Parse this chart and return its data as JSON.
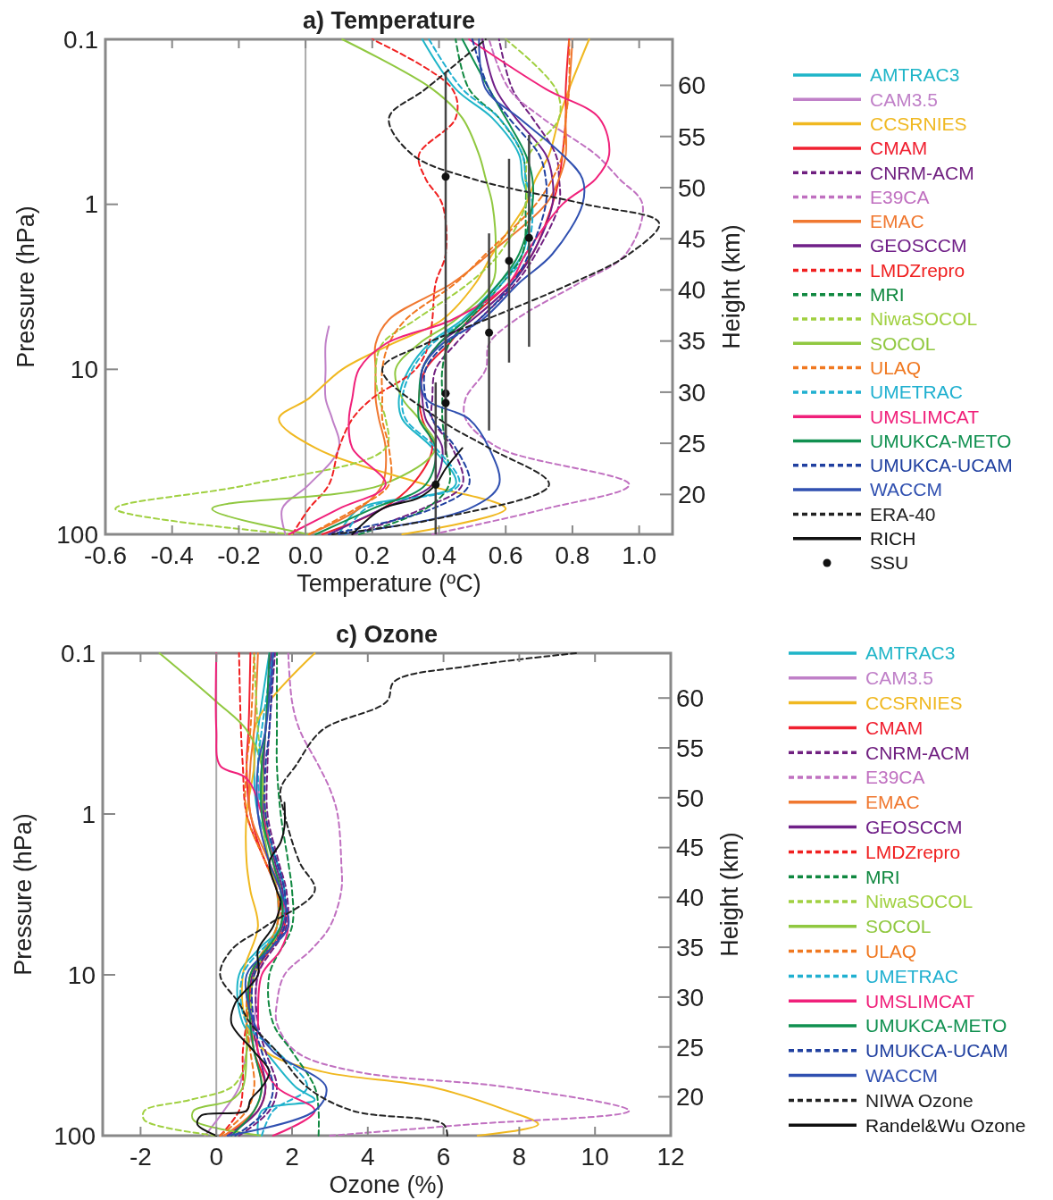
{
  "chart_data": [
    {
      "type": "line",
      "title": "a) Temperature",
      "xlabel": "Temperature (ºC)",
      "ylabel": "Pressure (hPa)",
      "y2label": "Height (km)",
      "log": "y",
      "legend": "right",
      "xlim": [
        -0.6,
        1.1
      ],
      "xticks": [
        -0.6,
        -0.4,
        -0.2,
        {
          "value": 0,
          "label": "0.0"
        },
        0.2,
        0.4,
        0.6,
        0.8,
        {
          "value": 1,
          "label": "1.0"
        }
      ],
      "ylim": [
        100,
        0.1
      ],
      "yticks": [
        0.1,
        1,
        10,
        100
      ],
      "y2lim": [
        16.1,
        64.5
      ],
      "y2ticks": [
        20,
        25,
        30,
        35,
        40,
        45,
        50,
        55,
        60
      ],
      "ref_lines": [
        {
          "axis": "x",
          "value": 0,
          "color": "#aaaaaa"
        }
      ],
      "series": [
        {
          "name": "AMTRAC3",
          "color": "#1fb5c8",
          "x": [
            0.1,
            0.16,
            0.45,
            0.38,
            0.29,
            0.28,
            0.31,
            0.37,
            0.47,
            0.58,
            0.65,
            0.67,
            0.65,
            0.64,
            0.56,
            0.45,
            0.35
          ],
          "values": [
            100,
            70,
            50,
            30,
            20,
            15,
            10,
            7,
            5,
            3,
            2,
            1,
            0.7,
            0.5,
            0.3,
            0.2,
            0.1
          ]
        },
        {
          "name": "CAM3.5",
          "color": "#c080c8",
          "x": [
            -0.06,
            -0.07,
            0.01,
            0.1,
            0.08,
            0.06,
            0.06,
            0.06,
            0.07
          ],
          "values": [
            100,
            70,
            50,
            30,
            20,
            15,
            10,
            7,
            5.5
          ]
        },
        {
          "name": "CCSRNIES",
          "color": "#f0b820",
          "x": [
            0.29,
            0.6,
            0.36,
            0.03,
            -0.08,
            0.01,
            0.11,
            0.26,
            0.41,
            0.51,
            0.56,
            0.66,
            0.69,
            0.73,
            0.76,
            0.79,
            0.85
          ],
          "values": [
            100,
            70,
            50,
            30,
            20,
            15,
            10,
            7,
            5,
            3,
            2,
            1,
            0.7,
            0.5,
            0.3,
            0.2,
            0.1
          ]
        },
        {
          "name": "CMAM",
          "color": "#f02030",
          "x": [
            0.05,
            0.23,
            0.32,
            0.38,
            0.35,
            0.34,
            0.36,
            0.43,
            0.49,
            0.61,
            0.68,
            0.74,
            0.76,
            0.77,
            0.78,
            0.78,
            0.79
          ],
          "values": [
            100,
            70,
            50,
            30,
            20,
            15,
            10,
            7,
            5,
            3,
            2,
            1,
            0.7,
            0.5,
            0.3,
            0.2,
            0.1
          ]
        },
        {
          "name": "CNRM-ACM",
          "color": "#702080",
          "line_style": "dashed",
          "x": [
            0.14,
            0.35,
            0.47,
            0.44,
            0.38,
            0.38,
            0.39,
            0.45,
            0.52,
            0.63,
            0.69,
            0.76,
            0.76,
            0.75,
            0.68,
            0.62,
            0.58
          ],
          "values": [
            100,
            70,
            50,
            30,
            20,
            15,
            10,
            7,
            5,
            3,
            2,
            1,
            0.7,
            0.5,
            0.3,
            0.2,
            0.1
          ]
        },
        {
          "name": "E39CA",
          "color": "#c070c0",
          "line_style": "dashed",
          "x": [
            0.38,
            0.72,
            0.97,
            0.58,
            0.48,
            0.48,
            0.54,
            0.55,
            0.63,
            0.82,
            0.96,
            1.01,
            0.94,
            0.87,
            0.71,
            0.61,
            0.55
          ],
          "values": [
            100,
            70,
            50,
            30,
            20,
            15,
            10,
            7,
            5,
            3,
            2,
            1,
            0.7,
            0.5,
            0.3,
            0.2,
            0.1
          ]
        },
        {
          "name": "EMAC",
          "color": "#f07830",
          "x": [
            0.01,
            0.16,
            0.23,
            0.24,
            0.22,
            0.21,
            0.21,
            0.21,
            0.25,
            0.44,
            0.55,
            0.72,
            0.76,
            0.78,
            0.78,
            0.79,
            0.8
          ],
          "values": [
            100,
            70,
            50,
            30,
            20,
            15,
            10,
            7,
            5,
            3,
            2,
            1,
            0.7,
            0.5,
            0.3,
            0.2,
            0.1
          ]
        },
        {
          "name": "GEOSCCM",
          "color": "#702088",
          "x": [
            0.07,
            0.23,
            0.38,
            0.41,
            0.36,
            0.35,
            0.35,
            0.4,
            0.5,
            0.62,
            0.68,
            0.74,
            0.74,
            0.72,
            0.63,
            0.57,
            0.53
          ],
          "values": [
            100,
            70,
            50,
            30,
            20,
            15,
            10,
            7,
            5,
            3,
            2,
            1,
            0.7,
            0.5,
            0.3,
            0.2,
            0.1
          ]
        },
        {
          "name": "LMDZrepro",
          "color": "#f02020",
          "line_style": "dashed",
          "x": [
            -0.04,
            0.01,
            0.07,
            0.1,
            0.14,
            0.2,
            0.33,
            0.37,
            0.38,
            0.39,
            0.42,
            0.41,
            0.36,
            0.34,
            0.45,
            0.44,
            0.2
          ],
          "values": [
            100,
            70,
            50,
            30,
            20,
            15,
            10,
            7,
            5,
            3,
            2,
            1,
            0.7,
            0.5,
            0.3,
            0.2,
            0.1
          ]
        },
        {
          "name": "MRI",
          "color": "#108840",
          "line_style": "dashed",
          "x": [
            0.16,
            0.36,
            0.43,
            0.42,
            0.41,
            0.41,
            0.41,
            0.43,
            0.49,
            0.59,
            0.65,
            0.66,
            0.66,
            0.65,
            0.58,
            0.49,
            0.45
          ],
          "values": [
            100,
            70,
            50,
            30,
            20,
            15,
            10,
            7,
            5,
            3,
            2,
            1,
            0.7,
            0.5,
            0.3,
            0.2,
            0.1
          ]
        },
        {
          "name": "NiwaSOCOL",
          "color": "#a0d040",
          "line_style": "dashed",
          "x": [
            -0.04,
            -0.57,
            -0.17,
            0.24,
            0.24,
            0.22,
            0.21,
            0.23,
            0.33,
            0.49,
            0.58,
            0.66,
            0.66,
            0.67,
            0.76,
            0.75,
            0.6
          ],
          "values": [
            100,
            70,
            50,
            30,
            20,
            15,
            10,
            7,
            5,
            3,
            2,
            1,
            0.7,
            0.5,
            0.3,
            0.2,
            0.1
          ]
        },
        {
          "name": "SOCOL",
          "color": "#90c840",
          "x": [
            0.01,
            -0.28,
            0.23,
            0.39,
            0.34,
            0.29,
            0.27,
            0.34,
            0.45,
            0.56,
            0.57,
            0.56,
            0.54,
            0.52,
            0.47,
            0.38,
            0.11
          ],
          "values": [
            100,
            70,
            50,
            30,
            20,
            15,
            10,
            7,
            5,
            3,
            2,
            1,
            0.7,
            0.5,
            0.3,
            0.2,
            0.1
          ]
        },
        {
          "name": "ULAQ",
          "color": "#f07820",
          "line_style": "dashed",
          "x": [
            0.01,
            0.15,
            0.25,
            0.25,
            0.23,
            0.23,
            0.23,
            0.25,
            0.3,
            0.45,
            0.54,
            0.69,
            0.74,
            0.77,
            0.78,
            0.79,
            0.79
          ],
          "values": [
            100,
            70,
            50,
            30,
            20,
            15,
            10,
            7,
            5,
            3,
            2,
            1,
            0.7,
            0.5,
            0.3,
            0.2,
            0.1
          ]
        },
        {
          "name": "UMETRAC",
          "color": "#20b0d0",
          "line_style": "dashed",
          "x": [
            0.12,
            0.18,
            0.46,
            0.39,
            0.3,
            0.29,
            0.32,
            0.38,
            0.48,
            0.59,
            0.66,
            0.68,
            0.66,
            0.65,
            0.58,
            0.47,
            0.37
          ],
          "values": [
            100,
            70,
            50,
            30,
            20,
            15,
            10,
            7,
            5,
            3,
            2,
            1,
            0.7,
            0.5,
            0.3,
            0.2,
            0.1
          ]
        },
        {
          "name": "UMSLIMCAT",
          "color": "#f0207a",
          "x": [
            -0.05,
            0.1,
            0.24,
            0.14,
            0.13,
            0.14,
            0.16,
            0.24,
            0.44,
            0.61,
            0.66,
            0.77,
            0.87,
            0.91,
            0.88,
            0.72,
            0.49
          ],
          "values": [
            100,
            70,
            50,
            30,
            20,
            15,
            10,
            7,
            5,
            3,
            2,
            1,
            0.7,
            0.5,
            0.3,
            0.2,
            0.1
          ]
        },
        {
          "name": "UMUKCA-METO",
          "color": "#109050",
          "x": [
            0.03,
            0.2,
            0.36,
            0.39,
            0.34,
            0.34,
            0.35,
            0.4,
            0.48,
            0.58,
            0.64,
            0.68,
            0.68,
            0.66,
            0.6,
            0.55,
            0.47
          ],
          "values": [
            100,
            70,
            50,
            30,
            20,
            15,
            10,
            7,
            5,
            3,
            2,
            1,
            0.7,
            0.5,
            0.3,
            0.2,
            0.1
          ]
        },
        {
          "name": "UMUKCA-UCAM",
          "color": "#2040a0",
          "line_style": "dashed",
          "x": [
            0.07,
            0.38,
            0.49,
            0.45,
            0.38,
            0.36,
            0.36,
            0.42,
            0.52,
            0.62,
            0.67,
            0.72,
            0.72,
            0.7,
            0.61,
            0.55,
            0.5
          ],
          "values": [
            100,
            70,
            50,
            30,
            20,
            15,
            10,
            7,
            5,
            3,
            2,
            1,
            0.7,
            0.5,
            0.3,
            0.2,
            0.1
          ]
        },
        {
          "name": "WACCM",
          "color": "#3050b0",
          "x": [
            0.1,
            0.49,
            0.58,
            0.55,
            0.49,
            0.36,
            0.35,
            0.41,
            0.53,
            0.64,
            0.74,
            0.83,
            0.83,
            0.77,
            0.64,
            0.54,
            0.52
          ],
          "values": [
            100,
            70,
            50,
            30,
            20,
            15,
            10,
            7,
            5,
            3,
            2,
            1,
            0.7,
            0.5,
            0.3,
            0.2,
            0.1
          ]
        },
        {
          "name": "ERA-40",
          "color": "#222222",
          "line_style": "dashed",
          "x": [
            0.08,
            0.4,
            0.73,
            0.55,
            0.4,
            0.23,
            0.36,
            0.54,
            0.8,
            0.97,
            1.06,
            0.84,
            0.5,
            0.32,
            0.25,
            0.36,
            0.54
          ],
          "values": [
            100,
            80,
            50,
            30,
            20,
            10,
            7,
            5,
            3,
            2,
            1.3,
            1,
            0.7,
            0.5,
            0.3,
            0.2,
            0.1
          ]
        },
        {
          "name": "RICH",
          "color": "#111111",
          "x": [
            0.14,
            0.23,
            0.34,
            0.39,
            0.42,
            0.47
          ],
          "values": [
            100,
            70,
            60,
            50,
            40,
            30
          ]
        },
        {
          "name": "SSU",
          "type": "scatter",
          "marker": "circle",
          "color": "#111111",
          "x": [
            0.42,
            0.42,
            0.42,
            0.39,
            0.55,
            0.61,
            0.67
          ],
          "values": [
            0.68,
            14,
            16,
            50,
            6,
            2.2,
            1.6
          ],
          "errors": [
            [
              0.16,
              4
            ],
            [
              4,
              30
            ],
            [
              5,
              33
            ],
            [
              12,
              100
            ],
            [
              1.5,
              23.5
            ],
            [
              0.53,
              9.1
            ],
            [
              0.38,
              7.3
            ]
          ]
        }
      ]
    },
    {
      "type": "line",
      "title": "c) Ozone",
      "xlabel": "Ozone (%)",
      "ylabel": "Pressure (hPa)",
      "y2label": "Height (km)",
      "log": "y",
      "legend": "right",
      "xlim": [
        -3,
        12
      ],
      "xticks": [
        -2,
        0,
        2,
        4,
        6,
        8,
        10,
        12
      ],
      "ylim": [
        100,
        0.1
      ],
      "yticks": [
        0.1,
        1,
        10,
        100
      ],
      "y2lim": [
        16.1,
        64.5
      ],
      "y2ticks": [
        20,
        25,
        30,
        35,
        40,
        45,
        50,
        55,
        60
      ],
      "ref_lines": [
        {
          "axis": "x",
          "value": 0,
          "color": "#aaaaaa"
        }
      ],
      "series": [
        {
          "name": "AMTRAC3",
          "color": "#1fb5c8",
          "x": [
            1.1,
            1.2,
            2.6,
            2.1,
            1.3,
            0.7,
            0.6,
            1.1,
            1.7,
            1.8,
            1.6,
            1.1,
            1.0,
            1.1,
            1.4
          ],
          "values": [
            100,
            70,
            60,
            50,
            30,
            20,
            10,
            7,
            5,
            3,
            2,
            1,
            0.5,
            0.3,
            0.1
          ]
        },
        {
          "name": "CAM3.5",
          "color": "#c080c8",
          "x": [
            -0.3,
            0.2,
            0.6,
            0.8,
            1.0,
            1.1,
            1.6,
            1.6,
            1.4,
            1.1,
            1.2,
            1.3,
            1.4
          ],
          "values": [
            100,
            70,
            50,
            30,
            20,
            10,
            5,
            3,
            2,
            1,
            0.5,
            0.3,
            0.1
          ]
        },
        {
          "name": "CCSRNIES",
          "color": "#f0b820",
          "x": [
            6.9,
            8.5,
            7.7,
            5.7,
            2.8,
            1.3,
            0.8,
            0.7,
            1.1,
            0.9,
            0.8,
            0.8,
            1.0,
            1.0,
            1.4,
            2.6
          ],
          "values": [
            100,
            85,
            70,
            50,
            40,
            30,
            20,
            10,
            5,
            3,
            2,
            1,
            0.5,
            0.3,
            0.2,
            0.1
          ]
        },
        {
          "name": "CMAM",
          "color": "#f02030",
          "x": [
            0.2,
            1.1,
            1.3,
            1.0,
            0.9,
            1.0,
            1.8,
            1.7,
            1.3,
            0.9,
            0.8,
            0.85,
            0.9
          ],
          "values": [
            100,
            70,
            50,
            30,
            20,
            10,
            5,
            3,
            2,
            1,
            0.5,
            0.3,
            0.1
          ]
        },
        {
          "name": "CNRM-ACM",
          "color": "#702080",
          "line_style": "dashed",
          "x": [
            0.6,
            1.4,
            1.6,
            1.3,
            1.1,
            1.1,
            1.85,
            1.85,
            1.65,
            1.35,
            1.35,
            1.4,
            1.55
          ],
          "values": [
            100,
            70,
            50,
            30,
            20,
            10,
            5,
            3,
            2,
            1,
            0.5,
            0.3,
            0.1
          ]
        },
        {
          "name": "E39CA",
          "color": "#c070c0",
          "line_style": "dashed",
          "x": [
            3.0,
            6.7,
            10.9,
            7.7,
            3.7,
            2.1,
            1.6,
            1.6,
            1.8,
            2.5,
            3.0,
            3.3,
            3.3,
            3.2,
            3.0,
            2.7,
            2.2,
            2.0,
            1.9
          ],
          "values": [
            100,
            85,
            70,
            50,
            40,
            30,
            20,
            15,
            10,
            7,
            5,
            3,
            2,
            1,
            0.7,
            0.5,
            0.3,
            0.2,
            0.1
          ]
        },
        {
          "name": "EMAC",
          "color": "#f07830",
          "x": [
            0.2,
            1.0,
            1.2,
            1.0,
            0.9,
            0.9,
            1.7,
            1.7,
            1.4,
            0.9,
            0.9,
            1.0,
            1.1
          ],
          "values": [
            100,
            70,
            50,
            30,
            20,
            10,
            5,
            3,
            2,
            1,
            0.5,
            0.3,
            0.1
          ]
        },
        {
          "name": "GEOSCCM",
          "color": "#702088",
          "x": [
            0.3,
            1.1,
            1.3,
            1.1,
            0.95,
            0.95,
            1.75,
            1.75,
            1.55,
            1.25,
            1.25,
            1.3,
            1.45
          ],
          "values": [
            100,
            70,
            50,
            30,
            20,
            10,
            5,
            3,
            2,
            1,
            0.5,
            0.3,
            0.1
          ]
        },
        {
          "name": "LMDZrepro",
          "color": "#f02020",
          "line_style": "dashed",
          "x": [
            0.1,
            0.6,
            0.7,
            0.7,
            0.8,
            1.0,
            1.7,
            1.6,
            1.3,
            0.8,
            0.7,
            0.65,
            0.6
          ],
          "values": [
            100,
            70,
            50,
            30,
            20,
            10,
            5,
            3,
            2,
            1,
            0.5,
            0.3,
            0.1
          ]
        },
        {
          "name": "MRI",
          "color": "#108840",
          "line_style": "dashed",
          "x": [
            2.7,
            2.7,
            2.6,
            2.0,
            1.5,
            1.4,
            2.0,
            2.0,
            1.9,
            1.7,
            1.6,
            1.6,
            1.6
          ],
          "values": [
            100,
            70,
            50,
            30,
            20,
            10,
            5,
            3,
            2,
            1,
            0.5,
            0.3,
            0.1
          ]
        },
        {
          "name": "NiwaSOCOL",
          "color": "#a0d040",
          "line_style": "dashed",
          "x": [
            0.0,
            -1.9,
            -1.9,
            -0.7,
            0.4,
            0.7,
            0.8,
            0.9,
            1.0,
            1.7,
            1.7,
            1.5,
            1.3,
            1.2,
            1.1,
            1.0
          ],
          "values": [
            100,
            80,
            70,
            60,
            50,
            40,
            30,
            20,
            10,
            5,
            3,
            2,
            1,
            0.5,
            0.3,
            0.1
          ]
        },
        {
          "name": "SOCOL",
          "color": "#90c840",
          "x": [
            1.2,
            -0.6,
            -0.6,
            0.4,
            0.7,
            0.8,
            0.8,
            0.9,
            1.6,
            1.6,
            1.4,
            1.2,
            1.2,
            0.8,
            0.0,
            -1.5
          ],
          "values": [
            100,
            80,
            70,
            60,
            50,
            30,
            20,
            10,
            5,
            3,
            2,
            1,
            0.5,
            0.3,
            0.2,
            0.1
          ]
        },
        {
          "name": "ULAQ",
          "color": "#f07820",
          "line_style": "dashed",
          "x": [
            0.1,
            0.8,
            1.0,
            0.9,
            0.8,
            0.9,
            1.6,
            1.6,
            1.3,
            0.8,
            0.8,
            0.9,
            1.0
          ],
          "values": [
            100,
            70,
            50,
            30,
            20,
            10,
            5,
            3,
            2,
            1,
            0.5,
            0.3,
            0.1
          ]
        },
        {
          "name": "UMETRAC",
          "color": "#20b0d0",
          "line_style": "dashed",
          "x": [
            1.2,
            1.5,
            2.4,
            1.6,
            0.8,
            0.7,
            1.7,
            1.8,
            1.6,
            1.2,
            1.1,
            1.2,
            1.5
          ],
          "values": [
            100,
            70,
            50,
            30,
            20,
            10,
            5,
            3,
            2,
            1,
            0.5,
            0.3,
            0.1
          ]
        },
        {
          "name": "UMSLIMCAT",
          "color": "#f0207a",
          "x": [
            1.5,
            2.6,
            1.6,
            1.1,
            1.1,
            1.2,
            1.7,
            1.9,
            1.7,
            1.5,
            1.2,
            0.8,
            0.1,
            0.0,
            0.0
          ],
          "values": [
            100,
            70,
            50,
            30,
            20,
            10,
            7,
            5,
            3,
            2,
            1,
            0.6,
            0.5,
            0.3,
            0.1
          ]
        },
        {
          "name": "UMUKCA-METO",
          "color": "#109050",
          "x": [
            0.4,
            1.0,
            1.2,
            1.0,
            0.9,
            0.9,
            1.7,
            1.7,
            1.5,
            1.2,
            1.2,
            1.3,
            1.4
          ],
          "values": [
            100,
            70,
            50,
            30,
            20,
            10,
            5,
            3,
            2,
            1,
            0.5,
            0.3,
            0.1
          ]
        },
        {
          "name": "UMUKCA-UCAM",
          "color": "#2040a0",
          "line_style": "dashed",
          "x": [
            0.5,
            1.3,
            1.5,
            1.2,
            1.0,
            1.0,
            1.8,
            1.8,
            1.6,
            1.3,
            1.3,
            1.4,
            1.5
          ],
          "values": [
            100,
            70,
            50,
            30,
            20,
            10,
            5,
            3,
            2,
            1,
            0.5,
            0.3,
            0.1
          ]
        },
        {
          "name": "WACCM",
          "color": "#3050b0",
          "x": [
            0.3,
            2.6,
            2.9,
            1.5,
            1.0,
            0.8,
            1.4,
            1.9,
            1.7,
            1.4,
            1.1,
            1.1,
            1.3,
            1.5
          ],
          "values": [
            100,
            70,
            50,
            30,
            20,
            10,
            7,
            5,
            3,
            2,
            1,
            0.5,
            0.3,
            0.1
          ]
        },
        {
          "name": "NIWA Ozone",
          "color": "#222222",
          "line_style": "dashed",
          "x": [
            6.1,
            6.0,
            3.6,
            2.4,
            1.6,
            0.9,
            0.6,
            0.1,
            0.4,
            1.3,
            2.6,
            2.2,
            1.8,
            1.7,
            2.1,
            2.8,
            4.5,
            4.7,
            6.7,
            9.5
          ],
          "values": [
            100,
            85,
            70,
            50,
            30,
            20,
            15,
            10,
            7,
            5,
            3,
            2,
            1,
            0.7,
            0.5,
            0.3,
            0.2,
            0.15,
            0.12,
            0.1
          ]
        },
        {
          "name": "Randel&Wu Ozone",
          "color": "#111111",
          "x": [
            0.0,
            -0.5,
            -0.4,
            0.8,
            0.9,
            1.2,
            1.4,
            1.0,
            0.4,
            0.5,
            1.1,
            1.1,
            1.5,
            1.7,
            1.6,
            1.4,
            1.7,
            1.8,
            1.8
          ],
          "values": [
            100,
            85,
            75,
            70,
            60,
            50,
            40,
            30,
            20,
            15,
            10,
            7,
            5,
            3.5,
            3,
            2,
            1.5,
            1.2,
            0.85
          ]
        }
      ]
    }
  ]
}
